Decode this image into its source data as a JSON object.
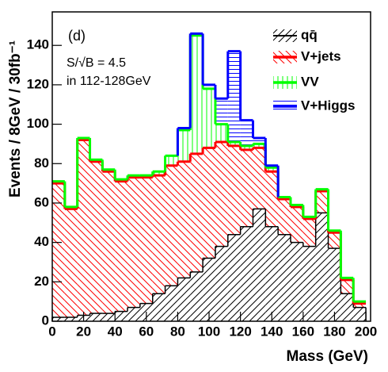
{
  "chart_data": {
    "type": "stacked_histogram",
    "annotations": [
      "(d)",
      "S/√B = 4.5",
      "in 112-128GeV"
    ],
    "x_label": "Mass (GeV)",
    "y_label": "Events / 8GeV / 30fb⁻¹",
    "bins": [
      0,
      8,
      16,
      24,
      32,
      40,
      48,
      56,
      64,
      72,
      80,
      88,
      96,
      104,
      112,
      120,
      128,
      136,
      144,
      152,
      160,
      168,
      176,
      184,
      192,
      200
    ],
    "series": [
      {
        "name": "qq̄",
        "color": "#000000",
        "values": [
          2,
          2,
          3,
          4,
          4,
          5,
          7,
          9,
          14,
          18,
          22,
          25,
          32,
          38,
          44,
          48,
          57,
          48,
          44,
          40,
          38,
          55,
          37,
          14,
          7
        ]
      },
      {
        "name": "V+jets",
        "color": "#ff0000",
        "values": [
          68,
          55,
          89,
          77,
          72,
          66,
          66,
          64,
          60,
          61,
          59,
          60,
          56,
          53,
          45,
          39,
          31,
          28,
          18,
          18,
          14,
          11,
          8,
          7,
          2
        ]
      },
      {
        "name": "VV",
        "color": "#00ff00",
        "values": [
          1,
          1,
          1,
          1,
          1,
          1,
          1,
          1,
          2,
          5,
          16,
          60,
          30,
          9,
          2,
          2,
          2,
          2,
          1,
          1,
          1,
          1,
          1,
          1,
          1
        ]
      },
      {
        "name": "V+Higgs",
        "color": "#0000ff",
        "values": [
          0,
          0,
          0,
          0,
          0,
          0,
          0,
          0,
          0,
          0,
          1,
          1,
          2,
          13,
          46,
          13,
          3,
          1,
          0,
          0,
          0,
          0,
          0,
          0,
          0
        ]
      }
    ],
    "xlim": [
      0,
      203
    ],
    "ylim": [
      0,
      157
    ],
    "xticks": [
      0,
      20,
      40,
      60,
      80,
      100,
      120,
      140,
      160,
      180,
      200
    ],
    "yticks": [
      0,
      20,
      40,
      60,
      80,
      100,
      120,
      140
    ],
    "legend": "upper right"
  }
}
